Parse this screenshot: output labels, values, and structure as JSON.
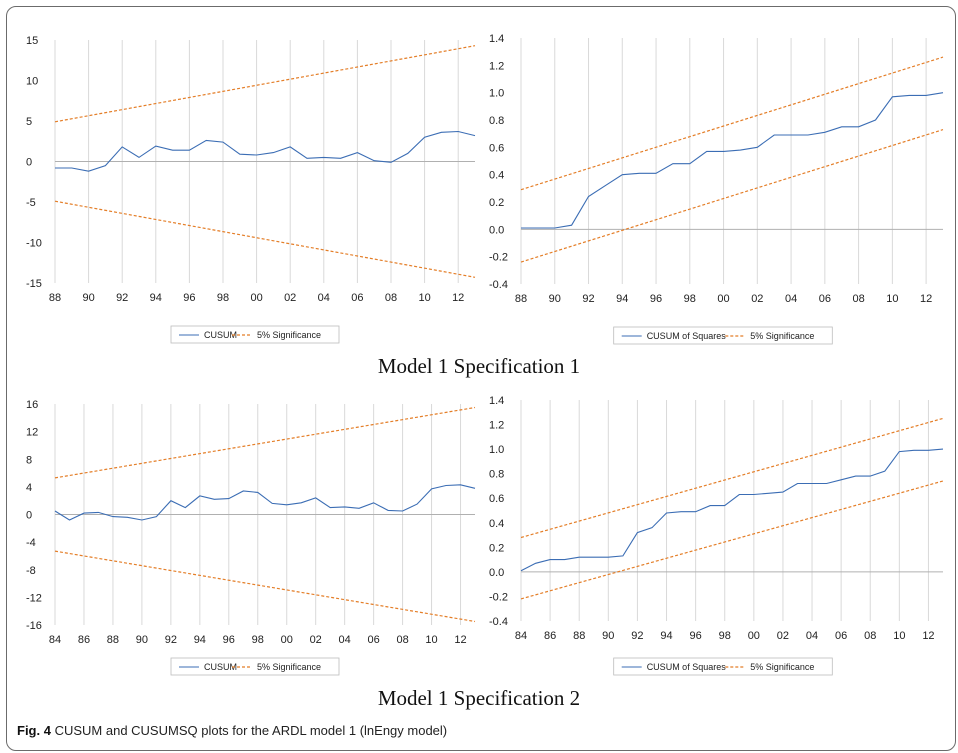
{
  "captions": {
    "row1": "Model 1 Specification 1",
    "row2": "Model 1   Specification 2",
    "figure_label": "Fig. 4",
    "figure_text": "CUSUM and CUSUMSQ plots for the ARDL model 1 (lnEngy model)"
  },
  "colors": {
    "statistic": "#3b6db4",
    "bounds": "#e47e28",
    "grid": "#d9d9d9",
    "zero_line": "#b0b0b0"
  },
  "chart_data": [
    {
      "id": "m1s1-cusum",
      "type": "line",
      "ylim": [
        -15,
        15
      ],
      "yticks": [
        15,
        10,
        5,
        0,
        -5,
        -10,
        -15
      ],
      "ytick_labels": [
        "15",
        "10",
        "5",
        "0",
        "-5",
        "-10",
        "-15"
      ],
      "xlim": [
        1988,
        2013
      ],
      "xticks": [
        1988,
        1990,
        1992,
        1994,
        1996,
        1998,
        2000,
        2002,
        2004,
        2006,
        2008,
        2010,
        2012
      ],
      "xtick_labels": [
        "88",
        "90",
        "92",
        "94",
        "96",
        "98",
        "00",
        "02",
        "04",
        "06",
        "08",
        "10",
        "12"
      ],
      "legend_position": "bottom",
      "series": [
        {
          "name": "CUSUM",
          "role": "statistic",
          "x": [
            1988,
            1989,
            1990,
            1991,
            1992,
            1993,
            1994,
            1995,
            1996,
            1997,
            1998,
            1999,
            2000,
            2001,
            2002,
            2003,
            2004,
            2005,
            2006,
            2007,
            2008,
            2009,
            2010,
            2011,
            2012,
            2013
          ],
          "values": [
            -0.8,
            -0.8,
            -1.2,
            -0.5,
            1.8,
            0.5,
            1.9,
            1.4,
            1.4,
            2.6,
            2.4,
            0.9,
            0.8,
            1.1,
            1.8,
            0.4,
            0.5,
            0.4,
            1.1,
            0.1,
            -0.1,
            1.0,
            3.0,
            3.6,
            3.7,
            3.2
          ]
        },
        {
          "name": "5% Significance",
          "role": "upper",
          "x": [
            1988,
            2013
          ],
          "values": [
            4.9,
            14.3
          ]
        },
        {
          "name": "",
          "role": "lower",
          "x": [
            1988,
            2013
          ],
          "values": [
            -4.9,
            -14.3
          ]
        }
      ]
    },
    {
      "id": "m1s1-cusumsq",
      "type": "line",
      "ylim": [
        -0.4,
        1.4
      ],
      "yticks": [
        1.4,
        1.2,
        1.0,
        0.8,
        0.6,
        0.4,
        0.2,
        0.0,
        -0.2,
        -0.4
      ],
      "ytick_labels": [
        "1.4",
        "1.2",
        "1.0",
        "0.8",
        "0.6",
        "0.4",
        "0.2",
        "0.0",
        "-0.2",
        "-0.4"
      ],
      "xlim": [
        1988,
        2013
      ],
      "xticks": [
        1988,
        1990,
        1992,
        1994,
        1996,
        1998,
        2000,
        2002,
        2004,
        2006,
        2008,
        2010,
        2012
      ],
      "xtick_labels": [
        "88",
        "90",
        "92",
        "94",
        "96",
        "98",
        "00",
        "02",
        "04",
        "06",
        "08",
        "10",
        "12"
      ],
      "legend_position": "bottom",
      "series": [
        {
          "name": "CUSUM of Squares",
          "role": "statistic",
          "x": [
            1988,
            1989,
            1990,
            1991,
            1992,
            1993,
            1994,
            1995,
            1996,
            1997,
            1998,
            1999,
            2000,
            2001,
            2002,
            2003,
            2004,
            2005,
            2006,
            2007,
            2008,
            2009,
            2010,
            2011,
            2012,
            2013
          ],
          "values": [
            0.01,
            0.01,
            0.01,
            0.03,
            0.24,
            0.32,
            0.4,
            0.41,
            0.41,
            0.48,
            0.48,
            0.57,
            0.57,
            0.58,
            0.6,
            0.69,
            0.69,
            0.69,
            0.71,
            0.75,
            0.75,
            0.8,
            0.97,
            0.98,
            0.98,
            1.0
          ]
        },
        {
          "name": "5% Significance",
          "role": "upper",
          "x": [
            1988,
            2013
          ],
          "values": [
            0.29,
            1.26
          ]
        },
        {
          "name": "",
          "role": "lower",
          "x": [
            1988,
            2013
          ],
          "values": [
            -0.24,
            0.73
          ]
        }
      ]
    },
    {
      "id": "m1s2-cusum",
      "type": "line",
      "ylim": [
        -16,
        16
      ],
      "yticks": [
        16,
        12,
        8,
        4,
        0,
        -4,
        -8,
        -12,
        -16
      ],
      "ytick_labels": [
        "16",
        "12",
        "8",
        "4",
        "0",
        "-4",
        "-8",
        "-12",
        "-16"
      ],
      "xlim": [
        1984,
        2013
      ],
      "xticks": [
        1984,
        1986,
        1988,
        1990,
        1992,
        1994,
        1996,
        1998,
        2000,
        2002,
        2004,
        2006,
        2008,
        2010,
        2012
      ],
      "xtick_labels": [
        "84",
        "86",
        "88",
        "90",
        "92",
        "94",
        "96",
        "98",
        "00",
        "02",
        "04",
        "06",
        "08",
        "10",
        "12"
      ],
      "legend_position": "bottom",
      "series": [
        {
          "name": "CUSUM",
          "role": "statistic",
          "x": [
            1984,
            1985,
            1986,
            1987,
            1988,
            1989,
            1990,
            1991,
            1992,
            1993,
            1994,
            1995,
            1996,
            1997,
            1998,
            1999,
            2000,
            2001,
            2002,
            2003,
            2004,
            2005,
            2006,
            2007,
            2008,
            2009,
            2010,
            2011,
            2012,
            2013
          ],
          "values": [
            0.5,
            -0.8,
            0.2,
            0.3,
            -0.3,
            -0.4,
            -0.8,
            -0.3,
            2.0,
            1.0,
            2.7,
            2.2,
            2.3,
            3.4,
            3.2,
            1.6,
            1.4,
            1.7,
            2.4,
            1.0,
            1.1,
            0.9,
            1.7,
            0.6,
            0.5,
            1.5,
            3.7,
            4.2,
            4.3,
            3.8
          ]
        },
        {
          "name": "5% Significance",
          "role": "upper",
          "x": [
            1984,
            2013
          ],
          "values": [
            5.3,
            15.5
          ]
        },
        {
          "name": "",
          "role": "lower",
          "x": [
            1984,
            2013
          ],
          "values": [
            -5.3,
            -15.5
          ]
        }
      ]
    },
    {
      "id": "m1s2-cusumsq",
      "type": "line",
      "ylim": [
        -0.4,
        1.4
      ],
      "yticks": [
        1.4,
        1.2,
        1.0,
        0.8,
        0.6,
        0.4,
        0.2,
        0.0,
        -0.2,
        -0.4
      ],
      "ytick_labels": [
        "1.4",
        "1.2",
        "1.0",
        "0.8",
        "0.6",
        "0.4",
        "0.2",
        "0.0",
        "-0.2",
        "-0.4"
      ],
      "xlim": [
        1984,
        2013
      ],
      "xticks": [
        1984,
        1986,
        1988,
        1990,
        1992,
        1994,
        1996,
        1998,
        2000,
        2002,
        2004,
        2006,
        2008,
        2010,
        2012
      ],
      "xtick_labels": [
        "84",
        "86",
        "88",
        "90",
        "92",
        "94",
        "96",
        "98",
        "00",
        "02",
        "04",
        "06",
        "08",
        "10",
        "12"
      ],
      "legend_position": "bottom",
      "series": [
        {
          "name": "CUSUM of Squares",
          "role": "statistic",
          "x": [
            1984,
            1985,
            1986,
            1987,
            1988,
            1989,
            1990,
            1991,
            1992,
            1993,
            1994,
            1995,
            1996,
            1997,
            1998,
            1999,
            2000,
            2001,
            2002,
            2003,
            2004,
            2005,
            2006,
            2007,
            2008,
            2009,
            2010,
            2011,
            2012,
            2013
          ],
          "values": [
            0.01,
            0.07,
            0.1,
            0.1,
            0.12,
            0.12,
            0.12,
            0.13,
            0.32,
            0.36,
            0.48,
            0.49,
            0.49,
            0.54,
            0.54,
            0.63,
            0.63,
            0.64,
            0.65,
            0.72,
            0.72,
            0.72,
            0.75,
            0.78,
            0.78,
            0.82,
            0.98,
            0.99,
            0.99,
            1.0
          ]
        },
        {
          "name": "5% Significance",
          "role": "upper",
          "x": [
            1984,
            2013
          ],
          "values": [
            0.28,
            1.25
          ]
        },
        {
          "name": "",
          "role": "lower",
          "x": [
            1984,
            2013
          ],
          "values": [
            -0.22,
            0.74
          ]
        }
      ]
    }
  ]
}
